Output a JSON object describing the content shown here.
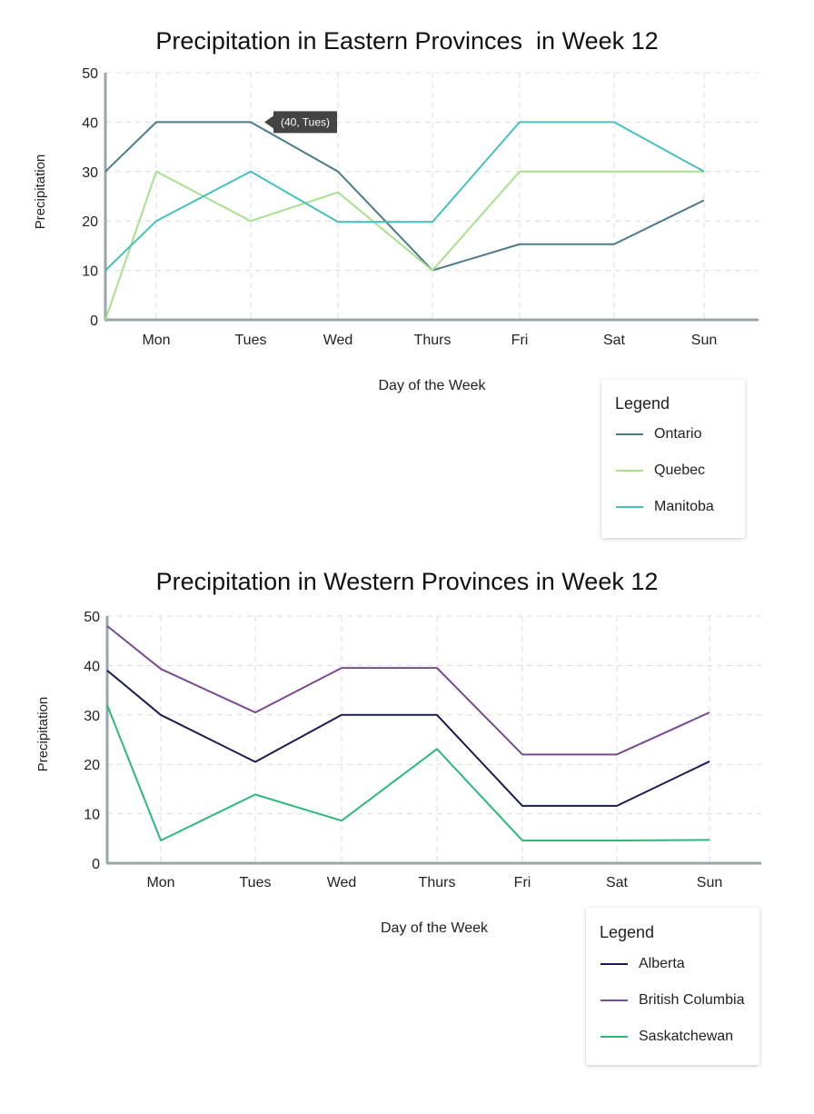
{
  "charts": [
    {
      "id": "eastern",
      "chart_data": {
        "type": "line",
        "title": "Precipitation in Eastern Provinces  in Week 12",
        "xlabel": "Day of the Week",
        "ylabel": "Precipitation",
        "categories": [
          "Mon",
          "Tues",
          "Wed",
          "Thurs",
          "Fri",
          "Sat",
          "Sun"
        ],
        "x_start_point": true,
        "ylim": [
          0,
          50
        ],
        "yticks": [
          0,
          10,
          20,
          30,
          40,
          50
        ],
        "grid": true,
        "legend_title": "Legend",
        "legend_position": "bottom-right",
        "series": [
          {
            "name": "Ontario",
            "color": "#4a7a8c",
            "start": 30,
            "values": [
              40,
              40,
              30,
              10,
              15.3,
              15.3,
              24.2
            ]
          },
          {
            "name": "Quebec",
            "color": "#a8e08c",
            "start": 0,
            "values": [
              30,
              20,
              25.8,
              10,
              30,
              30,
              30
            ]
          },
          {
            "name": "Manitoba",
            "color": "#45bfbf",
            "start": 10,
            "values": [
              20,
              30,
              19.8,
              19.8,
              40,
              40,
              30
            ]
          }
        ],
        "tooltip": {
          "text": "(40, Tues)",
          "series": "Ontario",
          "category": "Tues"
        }
      }
    },
    {
      "id": "western",
      "chart_data": {
        "type": "line",
        "title": "Precipitation in Western Provinces in Week 12",
        "xlabel": "Day of the Week",
        "ylabel": "Precipitation",
        "categories": [
          "Mon",
          "Tues",
          "Wed",
          "Thurs",
          "Fri",
          "Sat",
          "Sun"
        ],
        "x_start_point": true,
        "ylim": [
          0,
          50
        ],
        "yticks": [
          0,
          10,
          20,
          30,
          40,
          50
        ],
        "grid": true,
        "legend_title": "Legend",
        "legend_position": "bottom-right",
        "series": [
          {
            "name": "Alberta",
            "color": "#1a1a55",
            "start": 39,
            "values": [
              30,
              20.5,
              30,
              30,
              11.6,
              11.6,
              20.6
            ]
          },
          {
            "name": "British Columbia",
            "color": "#7a4a90",
            "start": 48,
            "values": [
              39.3,
              30.5,
              39.5,
              39.5,
              22,
              22,
              30.5
            ]
          },
          {
            "name": "Saskatchewan",
            "color": "#2db87a",
            "start": 32,
            "values": [
              4.6,
              13.9,
              8.6,
              23.1,
              4.6,
              4.6,
              4.7
            ]
          }
        ]
      }
    }
  ]
}
